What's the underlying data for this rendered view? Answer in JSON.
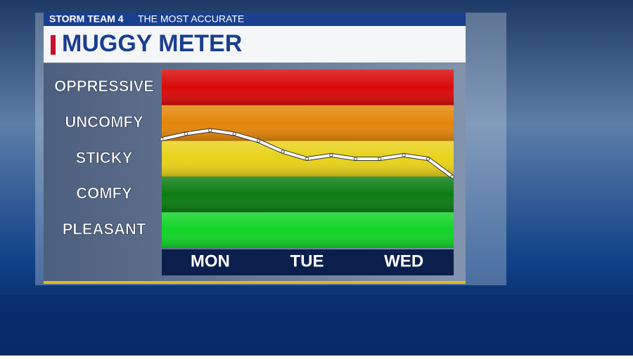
{
  "header": {
    "brand": "STORM TEAM 4",
    "tagline": "THE MOST ACCURATE"
  },
  "chart_data": {
    "type": "line",
    "title": "MUGGY METER",
    "categories": [
      null,
      null,
      "MON",
      null,
      null,
      null,
      "TUE",
      null,
      null,
      null,
      "WED",
      null,
      null
    ],
    "values": [
      3.05,
      3.2,
      3.3,
      3.2,
      3.0,
      2.7,
      2.5,
      2.6,
      2.5,
      2.5,
      2.6,
      2.5,
      2.0
    ],
    "color": "#ffffff",
    "ylim": [
      0,
      5
    ],
    "yticks": [
      {
        "value": 4.5,
        "label": "OPPRESSIVE"
      },
      {
        "value": 3.5,
        "label": "UNCOMFY"
      },
      {
        "value": 2.5,
        "label": "STICKY"
      },
      {
        "value": 1.5,
        "label": "COMFY"
      },
      {
        "value": 0.5,
        "label": "PLEASANT"
      }
    ],
    "band_colors": [
      "#d80a08",
      "#e4860a",
      "#e8d21a",
      "#0b7d12",
      "#12d428"
    ]
  }
}
